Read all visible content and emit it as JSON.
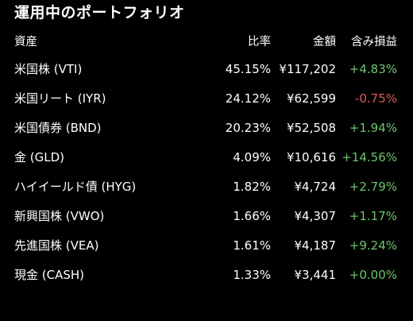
{
  "title": "運用中のポートフォリオ",
  "columns": {
    "name": "資産",
    "ratio": "比率",
    "amount": "金額",
    "pl": "含み損益"
  },
  "rows": [
    {
      "name": "米国株 (VTI)",
      "ratio": "45.15%",
      "amount": "¥117,202",
      "pl": "+4.83%",
      "sign": "pos"
    },
    {
      "name": "米国リート (IYR)",
      "ratio": "24.12%",
      "amount": "¥62,599",
      "pl": "-0.75%",
      "sign": "neg"
    },
    {
      "name": "米国債券 (BND)",
      "ratio": "20.23%",
      "amount": "¥52,508",
      "pl": "+1.94%",
      "sign": "pos"
    },
    {
      "name": "金 (GLD)",
      "ratio": "4.09%",
      "amount": "¥10,616",
      "pl": "+14.56%",
      "sign": "pos"
    },
    {
      "name": "ハイイールド債 (HYG)",
      "ratio": "1.82%",
      "amount": "¥4,724",
      "pl": "+2.79%",
      "sign": "pos"
    },
    {
      "name": "新興国株 (VWO)",
      "ratio": "1.66%",
      "amount": "¥4,307",
      "pl": "+1.17%",
      "sign": "pos"
    },
    {
      "name": "先進国株 (VEA)",
      "ratio": "1.61%",
      "amount": "¥4,187",
      "pl": "+9.24%",
      "sign": "pos"
    },
    {
      "name": "現金 (CASH)",
      "ratio": "1.33%",
      "amount": "¥3,441",
      "pl": "+0.00%",
      "sign": "zero"
    }
  ],
  "colors": {
    "background": "#000000",
    "text": "#ffffff",
    "positive": "#6cc56c",
    "negative": "#e05a57"
  }
}
